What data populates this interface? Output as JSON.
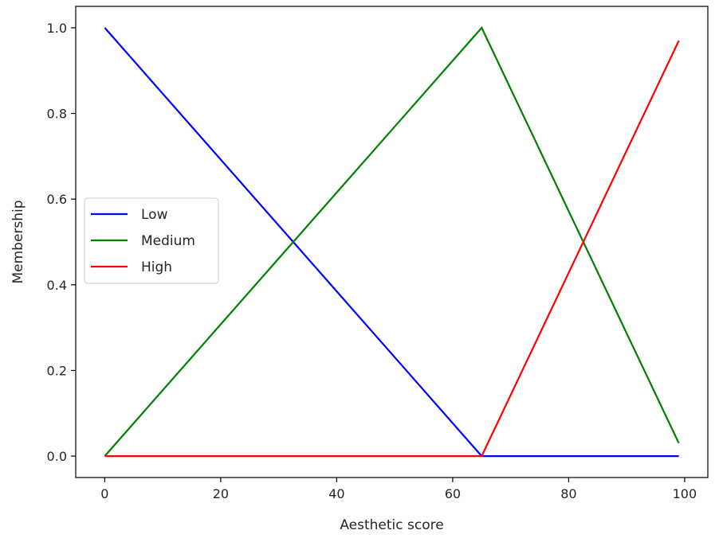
{
  "chart_data": {
    "type": "line",
    "title": "",
    "xlabel": "Aesthetic score",
    "ylabel": "Membership",
    "xlim": [
      -5,
      104
    ],
    "ylim": [
      -0.05,
      1.05
    ],
    "x_ticks": [
      0,
      20,
      40,
      60,
      80,
      100
    ],
    "y_ticks": [
      0.0,
      0.2,
      0.4,
      0.6,
      0.8,
      1.0
    ],
    "x_tick_labels": [
      "0",
      "20",
      "40",
      "60",
      "80",
      "100"
    ],
    "y_tick_labels": [
      "0.0",
      "0.2",
      "0.4",
      "0.6",
      "0.8",
      "1.0"
    ],
    "grid": false,
    "legend_position": "center-left",
    "series": [
      {
        "name": "Low",
        "color": "#0000ff",
        "x": [
          0,
          65,
          99
        ],
        "y": [
          1.0,
          0.0,
          0.0
        ]
      },
      {
        "name": "Medium",
        "color": "#008000",
        "x": [
          0,
          65,
          99
        ],
        "y": [
          0.0,
          1.0,
          0.03
        ]
      },
      {
        "name": "High",
        "color": "#ff0000",
        "x": [
          0,
          65,
          99
        ],
        "y": [
          0.0,
          0.0,
          0.97
        ]
      }
    ]
  }
}
